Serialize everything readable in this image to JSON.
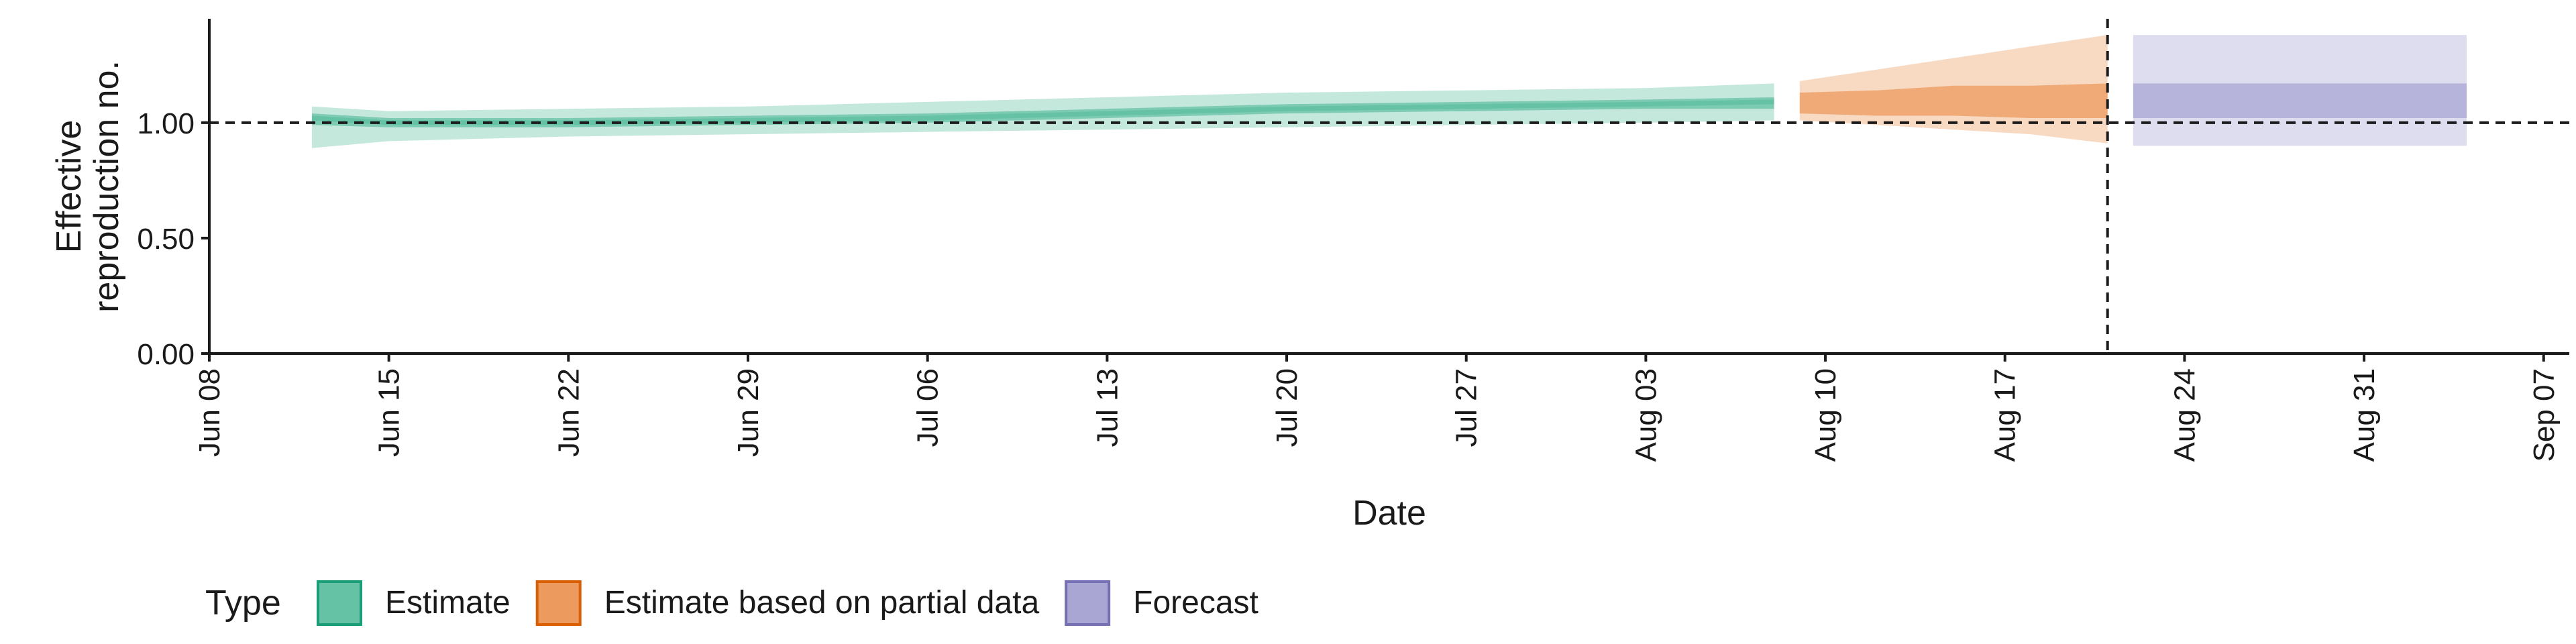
{
  "chart_data": {
    "type": "area",
    "xlabel": "Date",
    "ylabel_lines": [
      "Effective",
      "reproduction no."
    ],
    "x_ticks": [
      "Jun 08",
      "Jun 15",
      "Jun 22",
      "Jun 29",
      "Jul 06",
      "Jul 13",
      "Jul 20",
      "Jul 27",
      "Aug 03",
      "Aug 10",
      "Aug 17",
      "Aug 24",
      "Aug 31",
      "Sep 07"
    ],
    "x_tick_dates": [
      "2020-06-08",
      "2020-06-15",
      "2020-06-22",
      "2020-06-29",
      "2020-07-06",
      "2020-07-13",
      "2020-07-20",
      "2020-07-27",
      "2020-08-03",
      "2020-08-10",
      "2020-08-17",
      "2020-08-24",
      "2020-08-31",
      "2020-09-07"
    ],
    "xlim": [
      "2020-06-08",
      "2020-09-08"
    ],
    "y_ticks": [
      "0.00",
      "0.50",
      "1.00"
    ],
    "ylim": [
      0,
      1.45
    ],
    "reference_line_y": 1.0,
    "reference_date": "2020-08-21",
    "grid": false,
    "legend": {
      "title": "Type",
      "position": "bottom-left",
      "entries": [
        {
          "label": "Estimate",
          "fill": "#66c2a5",
          "border": "#1b9e77"
        },
        {
          "label": "Estimate based on partial data",
          "fill": "#ec9a5e",
          "border": "#d95f02"
        },
        {
          "label": "Forecast",
          "fill": "#a9a6d4",
          "border": "#7570b3"
        }
      ]
    },
    "series": [
      {
        "name": "Estimate",
        "color": "#66c2a5",
        "x": [
          "2020-06-12",
          "2020-06-15",
          "2020-06-22",
          "2020-06-29",
          "2020-07-06",
          "2020-07-13",
          "2020-07-20",
          "2020-07-27",
          "2020-08-03",
          "2020-08-08"
        ],
        "median": [
          1.02,
          1.0,
          1.0,
          1.01,
          1.02,
          1.04,
          1.06,
          1.07,
          1.08,
          1.09
        ],
        "lower_50": [
          0.99,
          0.98,
          0.98,
          0.99,
          1.0,
          1.02,
          1.04,
          1.05,
          1.06,
          1.06
        ],
        "upper_50": [
          1.04,
          1.02,
          1.02,
          1.03,
          1.04,
          1.06,
          1.08,
          1.09,
          1.1,
          1.11
        ],
        "lower_90": [
          0.89,
          0.92,
          0.94,
          0.95,
          0.96,
          0.97,
          0.98,
          0.99,
          1.0,
          1.01
        ],
        "upper_90": [
          1.07,
          1.05,
          1.06,
          1.07,
          1.09,
          1.11,
          1.13,
          1.14,
          1.15,
          1.17
        ]
      },
      {
        "name": "Estimate based on partial data",
        "color": "#ec9a5e",
        "x": [
          "2020-08-09",
          "2020-08-12",
          "2020-08-15",
          "2020-08-18",
          "2020-08-21"
        ],
        "median": [
          1.1,
          1.11,
          1.12,
          1.13,
          1.14
        ],
        "lower_50": [
          1.04,
          1.03,
          1.03,
          1.02,
          1.02
        ],
        "upper_50": [
          1.13,
          1.14,
          1.16,
          1.16,
          1.17
        ],
        "lower_90": [
          1.01,
          0.99,
          0.97,
          0.95,
          0.91
        ],
        "upper_90": [
          1.18,
          1.23,
          1.28,
          1.33,
          1.38
        ]
      },
      {
        "name": "Forecast",
        "color": "#a9a6d4",
        "x": [
          "2020-08-22",
          "2020-09-04"
        ],
        "median": [
          1.1,
          1.1
        ],
        "lower_50": [
          1.02,
          1.02
        ],
        "upper_50": [
          1.17,
          1.17
        ],
        "lower_90": [
          0.9,
          0.9
        ],
        "upper_90": [
          1.38,
          1.38
        ]
      }
    ]
  }
}
